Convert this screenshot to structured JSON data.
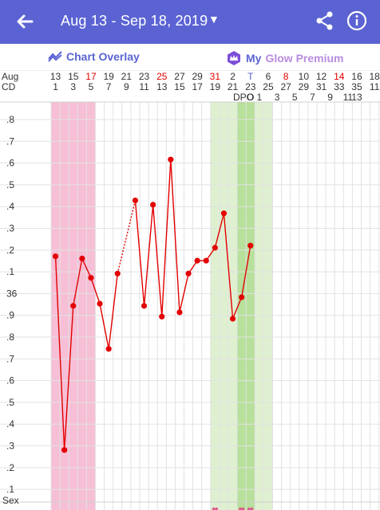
{
  "header": {
    "title": "Aug 13 - Sep 18, 2019",
    "back_icon": "arrow-left-icon",
    "dropdown_icon": "caret-down-icon",
    "share_icon": "share-icon",
    "info_icon": "info-icon",
    "bg_color": "#5b63d3"
  },
  "toolbar": {
    "overlay_label": "Chart Overlay",
    "premium_my": "My",
    "premium_label": "Glow Premium"
  },
  "chart": {
    "month_label": "Aug",
    "cd_label": "CD",
    "dates": [
      {
        "text": "13",
        "red": false
      },
      {
        "text": "",
        "red": false
      },
      {
        "text": "15",
        "red": false
      },
      {
        "text": "",
        "red": false
      },
      {
        "text": "17",
        "red": true
      },
      {
        "text": "",
        "red": false
      },
      {
        "text": "19",
        "red": false
      },
      {
        "text": "",
        "red": false
      },
      {
        "text": "21",
        "red": false
      },
      {
        "text": "",
        "red": false
      },
      {
        "text": "23",
        "red": false
      },
      {
        "text": "",
        "red": false
      },
      {
        "text": "25",
        "red": true
      },
      {
        "text": "",
        "red": false
      },
      {
        "text": "27",
        "red": false
      },
      {
        "text": "",
        "red": false
      },
      {
        "text": "29",
        "red": false
      },
      {
        "text": "",
        "red": false
      },
      {
        "text": "31",
        "red": true
      },
      {
        "text": "",
        "red": false
      },
      {
        "text": "2",
        "red": false
      },
      {
        "text": "",
        "red": false
      },
      {
        "text": "T",
        "red": false,
        "blue": true
      },
      {
        "text": "",
        "red": false
      },
      {
        "text": "6",
        "red": false
      },
      {
        "text": "",
        "red": false
      },
      {
        "text": "8",
        "red": true
      },
      {
        "text": "",
        "red": false
      },
      {
        "text": "10",
        "red": false
      },
      {
        "text": "",
        "red": false
      },
      {
        "text": "12",
        "red": false
      },
      {
        "text": "",
        "red": false
      },
      {
        "text": "14",
        "red": true
      },
      {
        "text": "",
        "red": false
      },
      {
        "text": "16",
        "red": false
      },
      {
        "text": "",
        "red": false
      },
      {
        "text": "18",
        "red": false
      }
    ],
    "cds": [
      "1",
      "",
      "3",
      "",
      "5",
      "",
      "7",
      "",
      "9",
      "",
      "11",
      "",
      "13",
      "",
      "15",
      "",
      "17",
      "",
      "19",
      "",
      "21",
      "",
      "23",
      "",
      "25",
      "",
      "27",
      "",
      "29",
      "",
      "31",
      "",
      "33",
      "",
      "35",
      "",
      "11"
    ],
    "dpo_label": "DPO",
    "dpo_values": [
      "O",
      "1",
      "",
      "3",
      "",
      "5",
      "",
      "7",
      "",
      "9",
      "",
      "11",
      "13"
    ],
    "sex_label": "Sex",
    "sex_icon": "heart-icon",
    "y_labels": [
      ".8",
      ".7",
      ".6",
      ".5",
      ".4",
      ".3",
      ".2",
      ".1",
      "36",
      ".9",
      ".8",
      ".7",
      ".6",
      ".5",
      ".4",
      ".3",
      ".2",
      ".1"
    ],
    "period_color": "#f6bfd6",
    "fertile_color": "#dff0d0",
    "ovulation_color": "#b7e09a",
    "line_color": "#e30000"
  },
  "chart_data": {
    "type": "line",
    "xlabel": "",
    "ylabel": "",
    "ylim": [
      35.05,
      36.85
    ],
    "x": [
      1,
      2,
      3,
      4,
      5,
      6,
      7,
      8,
      9,
      10,
      11,
      12,
      13,
      14,
      15,
      16,
      17,
      18,
      19,
      20,
      21,
      22,
      23,
      24
    ],
    "y": [
      36.14,
      35.24,
      35.91,
      36.13,
      36.04,
      35.92,
      35.71,
      36.06,
      null,
      36.4,
      35.91,
      36.38,
      35.86,
      36.59,
      35.88,
      36.06,
      36.12,
      36.12,
      36.18,
      36.34,
      35.85,
      35.95,
      36.19,
      null
    ],
    "dashed_segments": [
      [
        8,
        10
      ]
    ],
    "period_days": [
      1,
      5
    ],
    "fertile_days": [
      19,
      25
    ],
    "ovulation_days": [
      22,
      23
    ],
    "sex_days": [
      19,
      22,
      23
    ]
  }
}
